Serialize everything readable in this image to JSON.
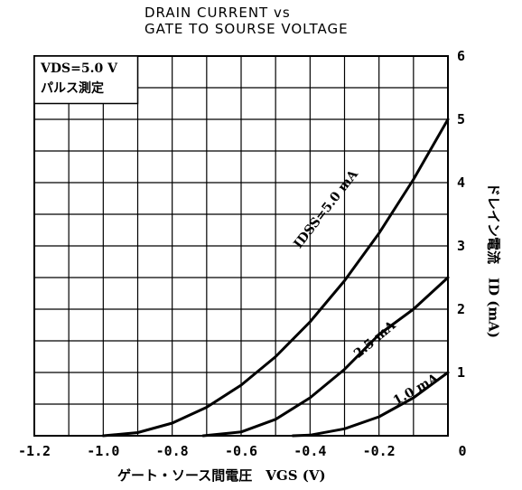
{
  "chart_data": {
    "type": "line",
    "title": "DRAIN CURRENT vs",
    "subtitle": "GATE TO SOURSE VOLTAGE",
    "xlabel": "ゲート・ソース間電圧　VGS (V)",
    "ylabel": "ドレイン電流　ID (mA)",
    "xlim": [
      -1.2,
      0
    ],
    "ylim": [
      0,
      6
    ],
    "x_ticks": [
      "-1.2",
      "-1.0",
      "-0.8",
      "-0.6",
      "-0.4",
      "-0.2",
      "0"
    ],
    "y_ticks": [
      "0",
      "1",
      "2",
      "3",
      "4",
      "5",
      "6"
    ],
    "grid": true,
    "conditions": [
      "VDS=5.0 V",
      "パルス測定"
    ],
    "series": [
      {
        "name": "IDSS=5.0 mA",
        "x": [
          -1.0,
          -0.9,
          -0.8,
          -0.7,
          -0.6,
          -0.5,
          -0.4,
          -0.3,
          -0.2,
          -0.1,
          0.0
        ],
        "y": [
          0.0,
          0.05,
          0.2,
          0.45,
          0.8,
          1.25,
          1.8,
          2.45,
          3.2,
          4.05,
          5.0
        ]
      },
      {
        "name": "2.5 mA",
        "x": [
          -0.71,
          -0.6,
          -0.5,
          -0.4,
          -0.3,
          -0.2,
          -0.1,
          0.0
        ],
        "y": [
          0.0,
          0.06,
          0.26,
          0.6,
          1.05,
          1.6,
          2.0,
          2.5
        ]
      },
      {
        "name": "1.0 mA",
        "x": [
          -0.45,
          -0.4,
          -0.3,
          -0.2,
          -0.1,
          0.0
        ],
        "y": [
          0.0,
          0.01,
          0.11,
          0.3,
          0.6,
          1.0
        ]
      }
    ]
  }
}
